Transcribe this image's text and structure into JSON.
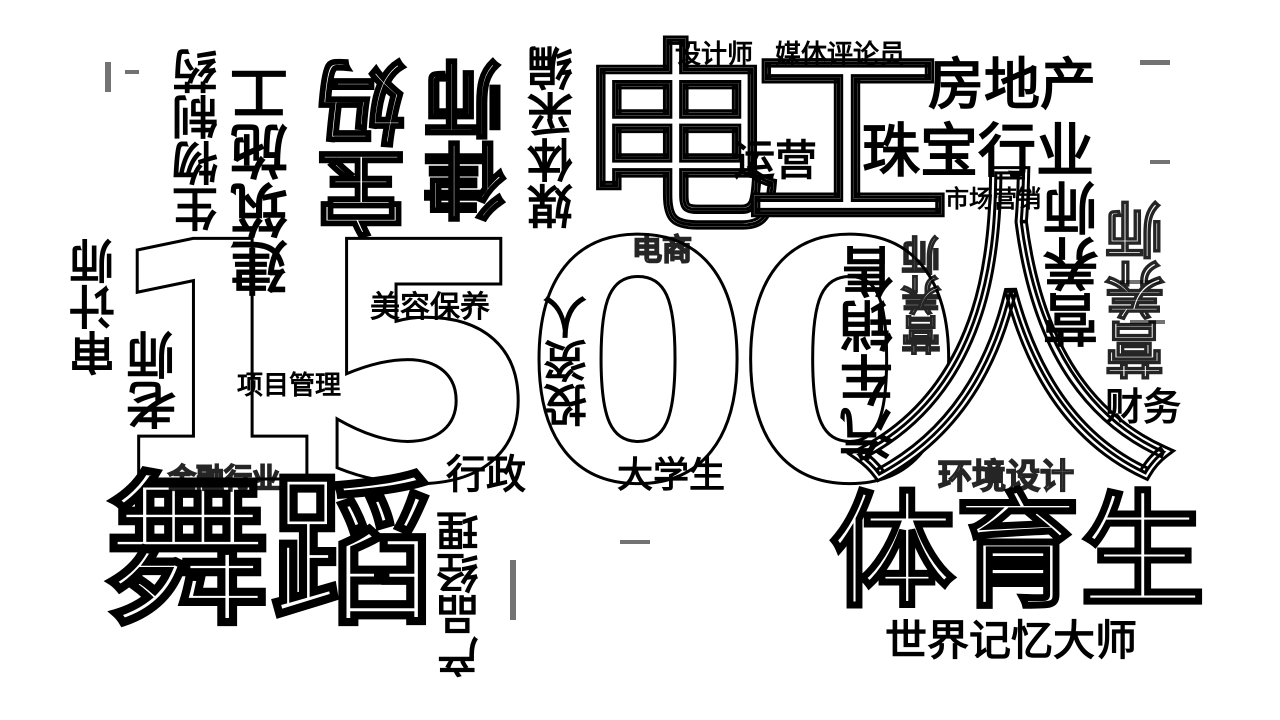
{
  "words": {
    "shengwuzhiyao": "生物制药",
    "jianzhushigong": "建筑施工",
    "baoma": "宝妈",
    "lvshi": "律师",
    "meiticaibian": "媒体采编",
    "shejishi": "设计师",
    "meitipinglunyuan": "媒体评论员",
    "dian": "电",
    "gong": "工",
    "fangdichan": "房地产",
    "yunying": "运营",
    "zhubaohangye": "珠宝行业",
    "shichangyingxiao": "市场营销",
    "yingyangshi": "营养师",
    "shenjishi": "审计师",
    "laoshi": "老师",
    "big_number": "1500",
    "ren": "人",
    "dianshang": "电商",
    "meirongbaoyang": "美容保养",
    "touziren": "投资人",
    "qichexiaoshou": "汽车销售",
    "xiangmuguanli": "项目管理",
    "caiwu": "财务",
    "jinronghangye": "金融行业",
    "xingzheng": "行政",
    "daxuesheng": "大学生",
    "huanjingsheji": "环境设计",
    "wudao": "舞蹈",
    "chanpinjingli": "产品经理",
    "tiyusheng": "体育生",
    "shijiejiyidashi": "世界记忆大师"
  }
}
